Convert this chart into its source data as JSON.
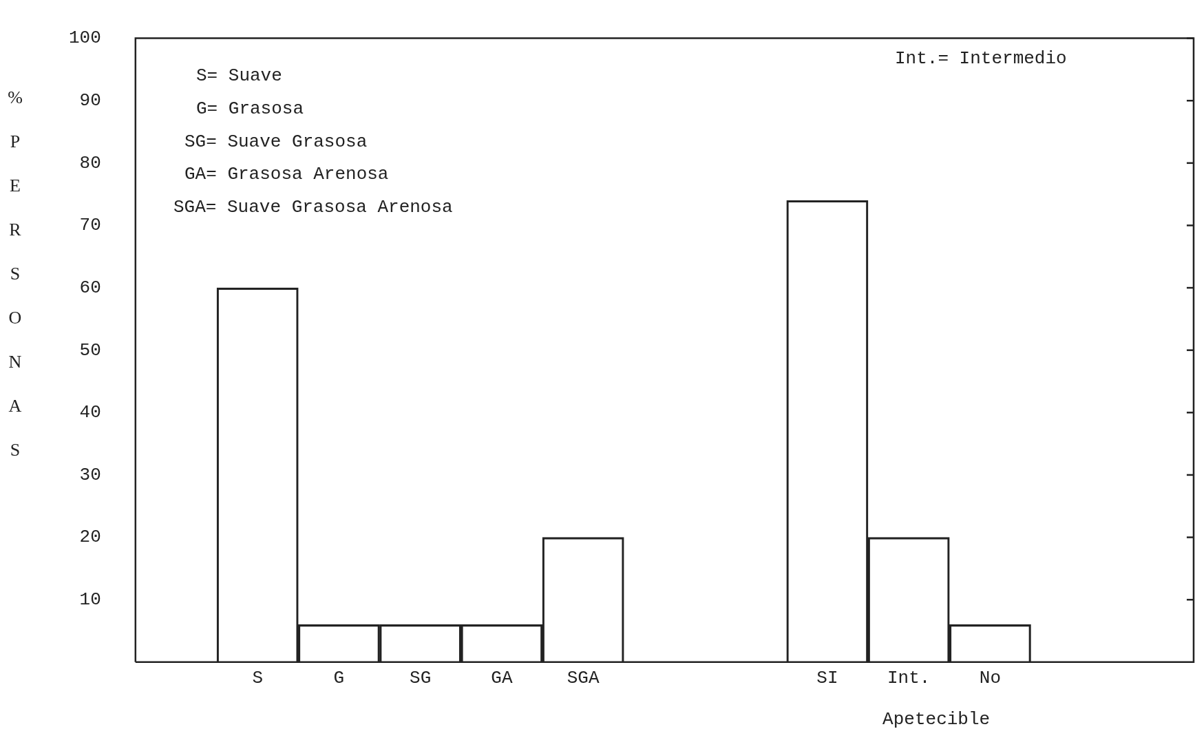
{
  "chart_data": {
    "type": "bar",
    "xlabel": "Apetecible",
    "ylabel": "% PERSONAS",
    "categories": [
      null,
      "S",
      "G",
      "SG",
      "GA",
      "SGA",
      null,
      null,
      "SI",
      "Int.",
      "No",
      null,
      null
    ],
    "values": [
      null,
      60,
      6,
      6,
      6,
      20,
      null,
      null,
      74,
      20,
      6,
      null,
      null
    ],
    "color": "#222222",
    "ylim": [
      0,
      100
    ],
    "yticks": [
      10,
      20,
      30,
      40,
      50,
      60,
      70,
      80,
      90,
      100
    ],
    "grid": false,
    "legend": false,
    "annotations": [
      "S= Suave",
      "G= Grasosa",
      "SG= Suave Grasosa",
      "GA= Grasosa Arenosa",
      "SGA= Suave Grasosa Arenosa",
      "Int.= Intermedio"
    ]
  }
}
